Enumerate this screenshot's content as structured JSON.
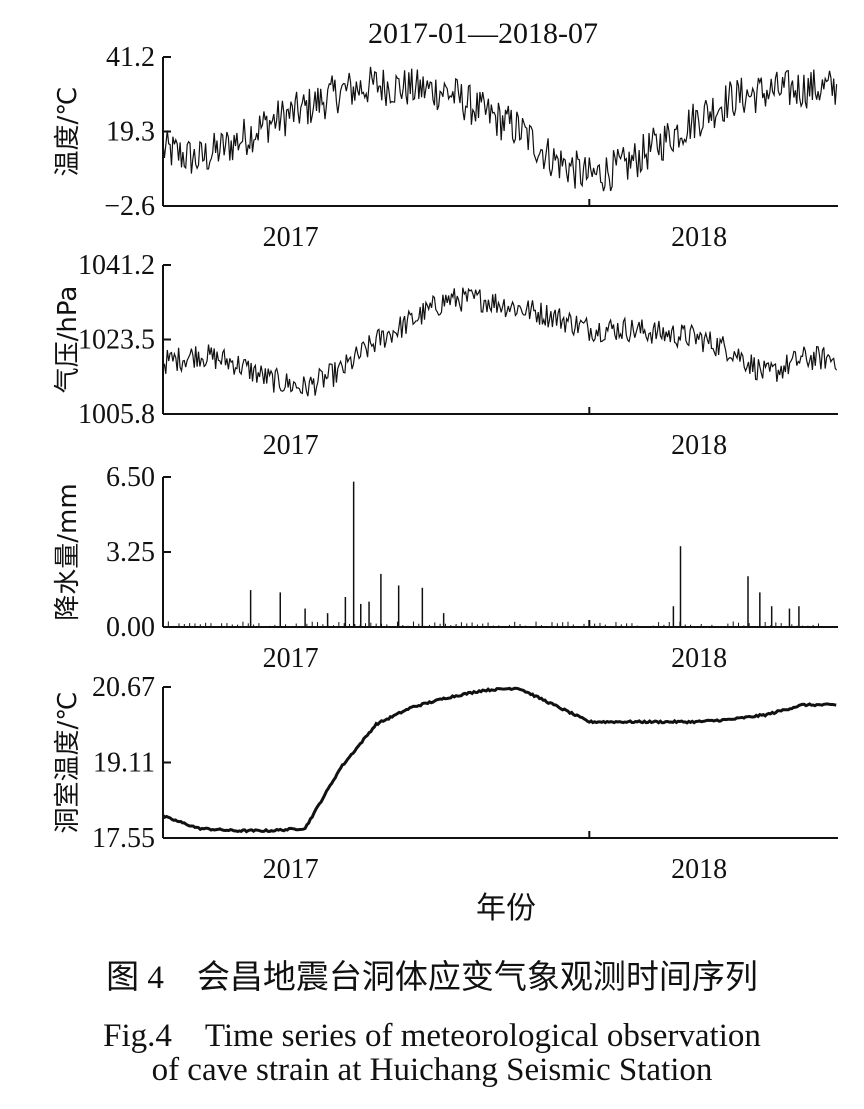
{
  "figure": {
    "title": "2017-01—2018-07",
    "xlabel": "年份"
  },
  "caption": {
    "cn": "图 4　会昌地震台洞体应变气象观测时间序列",
    "en_line1": "Fig.4　Time series of meteorological observation",
    "en_line2": "of cave strain at Huichang Seismic Station"
  },
  "chart_data": [
    {
      "type": "line",
      "ylabel": "温度/℃",
      "yticks": [
        "41.2",
        "19.3",
        "−2.6"
      ],
      "ylim": [
        -2.6,
        41.2
      ],
      "xticks": [
        "2017",
        "2018"
      ],
      "xlim": [
        "2017-01",
        "2018-07"
      ],
      "series": [
        {
          "x": [
            "2017-01",
            "2017-02",
            "2017-03",
            "2017-04",
            "2017-05",
            "2017-06",
            "2017-07",
            "2017-08",
            "2017-09",
            "2017-10",
            "2017-11",
            "2017-12",
            "2018-01",
            "2018-02",
            "2018-03",
            "2018-04",
            "2018-05",
            "2018-06",
            "2018-07"
          ],
          "values": [
            14,
            11,
            16,
            22,
            26,
            31,
            33,
            32,
            31,
            25,
            20,
            11,
            6,
            9,
            16,
            23,
            29,
            31,
            32
          ],
          "noise": 6
        }
      ]
    },
    {
      "type": "line",
      "ylabel": "气压/hPa",
      "yticks": [
        "1041.2",
        "1023.5",
        "1005.8"
      ],
      "ylim": [
        1005.8,
        1041.2
      ],
      "xticks": [
        "2017",
        "2018"
      ],
      "xlim": [
        "2017-01",
        "2018-07"
      ],
      "series": [
        {
          "x": [
            "2017-01",
            "2017-02",
            "2017-03",
            "2017-04",
            "2017-05",
            "2017-06",
            "2017-07",
            "2017-08",
            "2017-09",
            "2017-10",
            "2017-11",
            "2017-12",
            "2018-01",
            "2018-02",
            "2018-03",
            "2018-04",
            "2018-05",
            "2018-06",
            "2018-07"
          ],
          "values": [
            1018,
            1020,
            1018,
            1014,
            1012,
            1016,
            1023,
            1028,
            1033,
            1033,
            1031,
            1029,
            1026,
            1026,
            1025,
            1024,
            1021,
            1015,
            1019
          ],
          "noise": 3
        }
      ]
    },
    {
      "type": "bar",
      "ylabel": "降水量/mm",
      "yticks": [
        "6.50",
        "3.25",
        "0.00"
      ],
      "ylim": [
        0,
        6.5
      ],
      "xticks": [
        "2017",
        "2018"
      ],
      "xlim": [
        "2017-01",
        "2018-07"
      ],
      "series": [
        {
          "x": [
            "2017-03-15",
            "2017-04-10",
            "2017-05-01",
            "2017-05-20",
            "2017-06-05",
            "2017-06-12",
            "2017-06-18",
            "2017-06-25",
            "2017-07-05",
            "2017-07-20",
            "2017-08-10",
            "2017-08-28",
            "2018-03-12",
            "2018-03-18",
            "2018-05-15",
            "2018-05-25",
            "2018-06-05",
            "2018-06-20",
            "2018-06-28"
          ],
          "values": [
            1.6,
            1.5,
            0.8,
            0.6,
            1.3,
            6.3,
            1.0,
            1.1,
            2.3,
            1.8,
            1.7,
            0.6,
            0.9,
            3.5,
            2.2,
            1.5,
            0.9,
            0.8,
            0.9
          ]
        }
      ]
    },
    {
      "type": "line",
      "ylabel": "洞室温度/℃",
      "yticks": [
        "20.67",
        "19.11",
        "17.55"
      ],
      "ylim": [
        17.55,
        20.67
      ],
      "xticks": [
        "2017",
        "2018"
      ],
      "xlim": [
        "2017-01",
        "2018-07"
      ],
      "series": [
        {
          "x": [
            "2017-01",
            "2017-02",
            "2017-03",
            "2017-04",
            "2017-05",
            "2017-06",
            "2017-07",
            "2017-08",
            "2017-09",
            "2017-10",
            "2017-11",
            "2017-12",
            "2018-01",
            "2018-02",
            "2018-03",
            "2018-04",
            "2018-05",
            "2018-06",
            "2018-07"
          ],
          "values": [
            18.0,
            17.75,
            17.7,
            17.7,
            17.75,
            19.0,
            19.9,
            20.25,
            20.45,
            20.6,
            20.65,
            20.3,
            19.95,
            19.95,
            19.95,
            19.95,
            20.0,
            20.1,
            20.3
          ],
          "noise": 0.02
        }
      ]
    }
  ]
}
